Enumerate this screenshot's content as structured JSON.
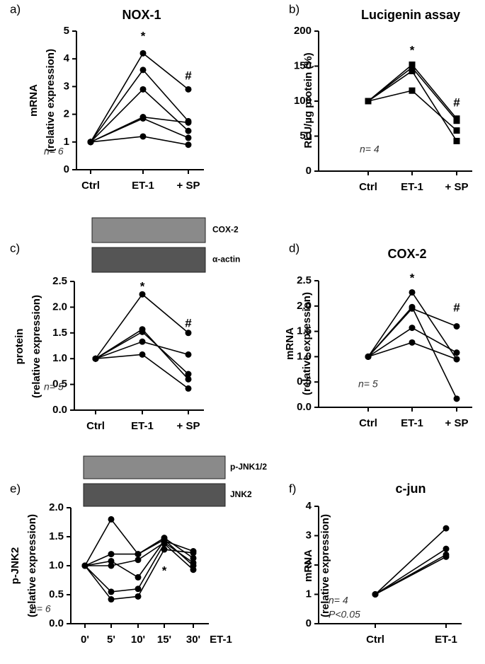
{
  "chart_data": [
    {
      "type": "line",
      "panel_label": "a)",
      "title": "NOX-1",
      "ylabel": [
        "mRNA",
        "(relative expression)"
      ],
      "categories": [
        "Ctrl",
        "ET-1",
        "+ SP"
      ],
      "ylim": [
        0,
        5
      ],
      "yticks": [
        0,
        1,
        2,
        3,
        4,
        5
      ],
      "marker": "circle",
      "color": "#000000",
      "annotations": [
        "*",
        "#"
      ],
      "notes": [
        "n= 6"
      ],
      "series": [
        {
          "values": [
            1,
            4.2,
            2.9
          ]
        },
        {
          "values": [
            1,
            3.6,
            1.75
          ]
        },
        {
          "values": [
            1,
            2.9,
            1.4
          ]
        },
        {
          "values": [
            1,
            1.9,
            1.7
          ]
        },
        {
          "values": [
            1,
            1.85,
            1.15
          ]
        },
        {
          "values": [
            1,
            1.2,
            0.9
          ]
        }
      ]
    },
    {
      "type": "line",
      "panel_label": "b)",
      "title": "Lucigenin assay",
      "ylabel": [
        "RLU/µg protein (%)"
      ],
      "categories": [
        "Ctrl",
        "ET-1",
        "+ SP"
      ],
      "ylim": [
        0,
        200
      ],
      "yticks": [
        0,
        50,
        100,
        150,
        200
      ],
      "marker": "square",
      "color": "#000000",
      "annotations": [
        "*",
        "#"
      ],
      "notes": [
        "n= 4"
      ],
      "series": [
        {
          "values": [
            100,
            152,
            75
          ]
        },
        {
          "values": [
            100,
            148,
            72
          ]
        },
        {
          "values": [
            100,
            143,
            43
          ]
        },
        {
          "values": [
            100,
            115,
            58
          ]
        }
      ]
    },
    {
      "type": "line",
      "panel_label": "c)",
      "blot_labels": [
        "COX-2",
        "α-actin"
      ],
      "ylabel": [
        "protein",
        "(relative expression)"
      ],
      "categories": [
        "Ctrl",
        "ET-1",
        "+ SP"
      ],
      "ylim": [
        0,
        2.5
      ],
      "yticks": [
        {
          "value": 0,
          "label": "0.0"
        },
        {
          "value": 0.5,
          "label": "0.5"
        },
        {
          "value": 1,
          "label": "1.0"
        },
        {
          "value": 1.5,
          "label": "1.5"
        },
        {
          "value": 2,
          "label": "2.0"
        },
        {
          "value": 2.5,
          "label": "2.5"
        }
      ],
      "marker": "circle",
      "color": "#000000",
      "annotations": [
        "*",
        "#"
      ],
      "notes": [
        "n= 5"
      ],
      "series": [
        {
          "values": [
            1,
            2.25,
            1.5
          ]
        },
        {
          "values": [
            1,
            1.57,
            0.6
          ]
        },
        {
          "values": [
            1,
            1.52,
            0.7
          ]
        },
        {
          "values": [
            1,
            1.33,
            1.08
          ]
        },
        {
          "values": [
            1,
            1.08,
            0.42
          ]
        }
      ]
    },
    {
      "type": "line",
      "panel_label": "d)",
      "title": "COX-2",
      "ylabel": [
        "mRNA",
        "(relative expression)"
      ],
      "categories": [
        "Ctrl",
        "ET-1",
        "+ SP"
      ],
      "ylim": [
        0,
        2.5
      ],
      "yticks": [
        {
          "value": 0,
          "label": "0.0"
        },
        {
          "value": 0.5,
          "label": "0.5"
        },
        {
          "value": 1,
          "label": "1.0"
        },
        {
          "value": 1.5,
          "label": "1.5"
        },
        {
          "value": 2,
          "label": "2.0"
        },
        {
          "value": 2.5,
          "label": "2.5"
        }
      ],
      "marker": "circle",
      "color": "#000000",
      "annotations": [
        "*",
        "#"
      ],
      "notes": [
        "n= 5"
      ],
      "series": [
        {
          "values": [
            1,
            2.27,
            0.95
          ]
        },
        {
          "values": [
            1,
            1.98,
            0.17
          ]
        },
        {
          "values": [
            1,
            1.95,
            1.6
          ]
        },
        {
          "values": [
            1,
            1.57,
            1.08
          ]
        },
        {
          "values": [
            1,
            1.28,
            0.95
          ]
        }
      ]
    },
    {
      "type": "line",
      "panel_label": "e)",
      "blot_labels": [
        "p-JNK1/2",
        "JNK2"
      ],
      "ylabel": [
        "p-JNK2",
        "(relative expression)"
      ],
      "categories": [
        "0'",
        "5'",
        "10'",
        "15'",
        "30'"
      ],
      "xlabel": "ET-1",
      "ylim": [
        0,
        2
      ],
      "yticks": [
        {
          "value": 0,
          "label": "0.0"
        },
        {
          "value": 0.5,
          "label": "0.5"
        },
        {
          "value": 1,
          "label": "1.0"
        },
        {
          "value": 1.5,
          "label": "1.5"
        },
        {
          "value": 2,
          "label": "2.0"
        }
      ],
      "marker": "circle",
      "color": "#000000",
      "annotations": [
        "*"
      ],
      "notes": [
        "n= 6"
      ],
      "series": [
        {
          "values": [
            1,
            1.8,
            1.2,
            1.45,
            1.0
          ]
        },
        {
          "values": [
            1,
            1.2,
            1.2,
            1.48,
            1.13
          ]
        },
        {
          "values": [
            1,
            1.08,
            0.8,
            1.43,
            1.25
          ]
        },
        {
          "values": [
            1,
            1.0,
            1.1,
            1.4,
            1.05
          ]
        },
        {
          "values": [
            1,
            0.55,
            0.6,
            1.38,
            0.93
          ]
        },
        {
          "values": [
            1,
            0.42,
            0.47,
            1.28,
            1.22
          ]
        }
      ]
    },
    {
      "type": "line",
      "panel_label": "f)",
      "title": "c-jun",
      "ylabel": [
        "mRNA",
        "(relative expression)"
      ],
      "categories": [
        "Ctrl",
        "ET-1"
      ],
      "ylim": [
        0,
        4
      ],
      "yticks": [
        0,
        1,
        2,
        3,
        4
      ],
      "marker": "circle",
      "color": "#000000",
      "notes": [
        "n= 4",
        "P<0.05"
      ],
      "series": [
        {
          "values": [
            1,
            3.25
          ]
        },
        {
          "values": [
            1,
            2.55
          ]
        },
        {
          "values": [
            1,
            2.35
          ]
        },
        {
          "values": [
            1,
            2.28
          ]
        }
      ]
    }
  ]
}
